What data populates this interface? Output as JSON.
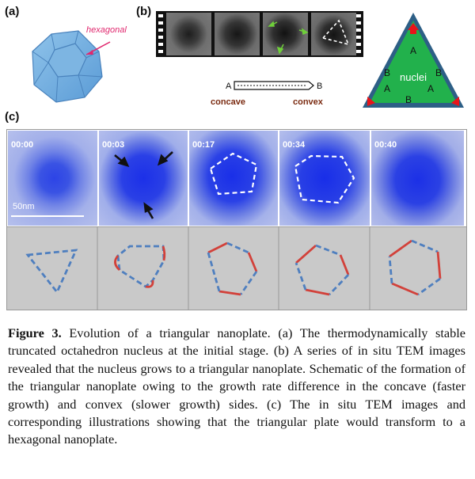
{
  "panel_a": {
    "label": "(a)",
    "annotation": "hexagonal"
  },
  "panel_b": {
    "label": "(b)",
    "marker_a": "A",
    "marker_b": "B",
    "concave_label": "concave",
    "convex_label": "convex",
    "nuclei_label": "nuclei",
    "triangle_letters": [
      "A",
      "B",
      "B",
      "A",
      "A",
      "B"
    ],
    "colors": {
      "triangle_border": "#2d5f86",
      "triangle_fill": "#22b14c",
      "arrow": "#e8141a",
      "label_brown": "#7a2a10"
    }
  },
  "panel_c": {
    "label": "(c)",
    "timestamps": [
      "00:00",
      "00:03",
      "00:17",
      "00:34",
      "00:40"
    ],
    "scale_bar": "50nm",
    "colors": {
      "tem_blue": "#3d56e0",
      "edge_red": "#d2413a",
      "edge_blue": "#4f7fbf",
      "panel_gray": "#c9c9c9"
    }
  },
  "caption": {
    "prefix": "Figure 3.",
    "text": " Evolution of a triangular nanoplate. (a) The thermodynamically stable truncated octahedron nucleus at the initial stage. (b) A series of in situ TEM images revealed that the nucleus grows to a triangular nanoplate. Schematic of the formation of the triangular nanoplate owing to the growth rate difference in the concave (faster growth) and convex (slower growth) sides. (c) The in situ TEM images and corresponding illustrations showing that the triangular plate would transform to a hexagonal nanoplate."
  }
}
